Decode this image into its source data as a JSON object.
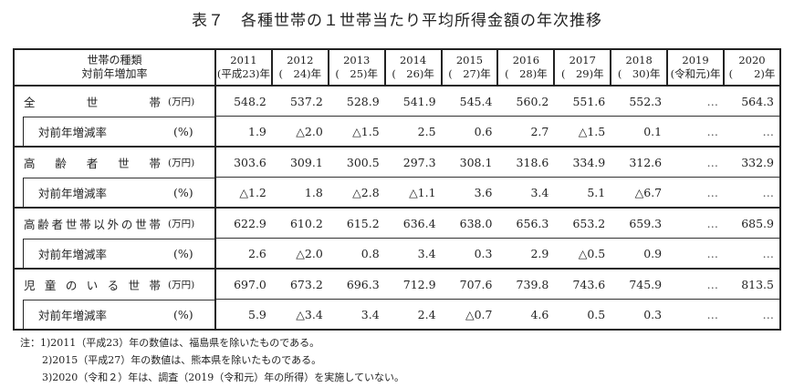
{
  "title": "表７　各種世帯の１世帯当たり平均所得金額の年次推移",
  "header": {
    "label_line1": "世帯の種類",
    "label_line2": "対前年増加率",
    "years": [
      {
        "year": "2011",
        "era": "(平成23)年"
      },
      {
        "year": "2012",
        "era": "(　24)年"
      },
      {
        "year": "2013",
        "era": "(　25)年"
      },
      {
        "year": "2014",
        "era": "(　26)年"
      },
      {
        "year": "2015",
        "era": "(　27)年"
      },
      {
        "year": "2016",
        "era": "(　28)年"
      },
      {
        "year": "2017",
        "era": "(　29)年"
      },
      {
        "year": "2018",
        "era": "(　30)年"
      },
      {
        "year": "2019",
        "era": "(令和元)年"
      },
      {
        "year": "2020",
        "era": "(　　2)年"
      }
    ]
  },
  "groups": [
    {
      "label": "全世帯",
      "unit": "(万円)",
      "values": [
        "548.2",
        "537.2",
        "528.9",
        "541.9",
        "545.4",
        "560.2",
        "551.6",
        "552.3",
        "…",
        "564.3"
      ],
      "rate_label": "対前年増減率",
      "rate_unit": "(%)",
      "rates": [
        "1.9",
        "△2.0",
        "△1.5",
        "2.5",
        "0.6",
        "2.7",
        "△1.5",
        "0.1",
        "…",
        "…"
      ]
    },
    {
      "label": "高齢者世帯",
      "unit": "(万円)",
      "values": [
        "303.6",
        "309.1",
        "300.5",
        "297.3",
        "308.1",
        "318.6",
        "334.9",
        "312.6",
        "…",
        "332.9"
      ],
      "rate_label": "対前年増減率",
      "rate_unit": "(%)",
      "rates": [
        "△1.2",
        "1.8",
        "△2.8",
        "△1.1",
        "3.6",
        "3.4",
        "5.1",
        "△6.7",
        "…",
        "…"
      ]
    },
    {
      "label": "高齢者世帯以外の世帯",
      "unit": "(万円)",
      "values": [
        "622.9",
        "610.2",
        "615.2",
        "636.4",
        "638.0",
        "656.3",
        "653.2",
        "659.3",
        "…",
        "685.9"
      ],
      "rate_label": "対前年増減率",
      "rate_unit": "(%)",
      "rates": [
        "2.6",
        "△2.0",
        "0.8",
        "3.4",
        "0.3",
        "2.9",
        "△0.5",
        "0.9",
        "…",
        "…"
      ]
    },
    {
      "label": "児童のいる世帯",
      "unit": "(万円)",
      "values": [
        "697.0",
        "673.2",
        "696.3",
        "712.9",
        "707.6",
        "739.8",
        "743.6",
        "745.9",
        "…",
        "813.5"
      ],
      "rate_label": "対前年増減率",
      "rate_unit": "(%)",
      "rates": [
        "5.9",
        "△3.4",
        "3.4",
        "2.4",
        "△0.7",
        "4.6",
        "0.5",
        "0.3",
        "…",
        "…"
      ]
    }
  ],
  "notes": [
    "注：1)2011（平成23）年の数値は、福島県を除いたものである。",
    "2)2015（平成27）年の数値は、熊本県を除いたものである。",
    "3)2020（令和２）年は、調査（2019（令和元）年の所得）を実施していない。"
  ]
}
